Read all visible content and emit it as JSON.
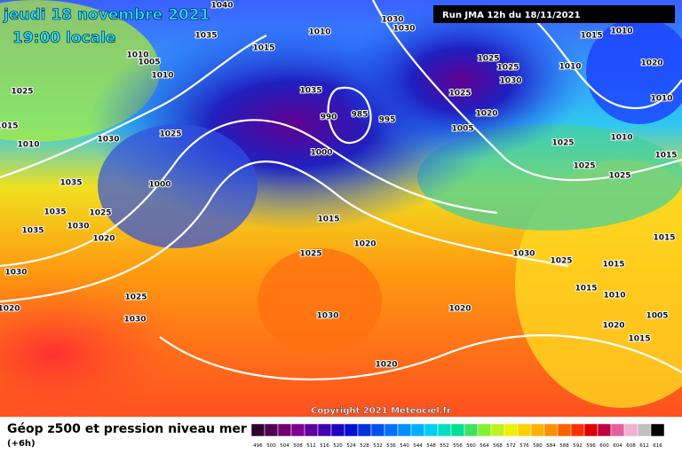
{
  "header": {
    "date": "jeudi 18 novembre 2021",
    "time": "19:00 locale",
    "run": "Run JMA 12h du 18/11/2021"
  },
  "map": {
    "copyright": "Copyright 2021 Meteociel.fr",
    "isobar_labels": [
      1040,
      1035,
      1015,
      1010,
      1030,
      1030,
      1010,
      1005,
      1010,
      1025,
      1015,
      1010,
      1030,
      1025,
      1035,
      985,
      995,
      990,
      1000,
      1035,
      1000,
      1035,
      1025,
      1030,
      1035,
      1020,
      1015,
      1025,
      1020,
      1030,
      1025,
      1030,
      1020,
      1030,
      1020,
      1020,
      1015,
      1010,
      1025,
      1025,
      1030,
      1010,
      1020,
      1025,
      1020,
      1005,
      1010,
      1025,
      1010,
      1015,
      1025,
      1025,
      1015,
      1030,
      1025,
      1015,
      1015,
      1010,
      1005,
      1020,
      1015
    ]
  },
  "footer": {
    "title": "Géop z500 et pression niveau mer",
    "lead": "(+6h)",
    "scale": [
      496,
      500,
      504,
      508,
      512,
      516,
      520,
      524,
      528,
      532,
      536,
      540,
      544,
      548,
      552,
      556,
      560,
      564,
      568,
      572,
      576,
      580,
      584,
      588,
      592,
      596,
      600,
      604,
      608,
      612,
      616
    ]
  }
}
